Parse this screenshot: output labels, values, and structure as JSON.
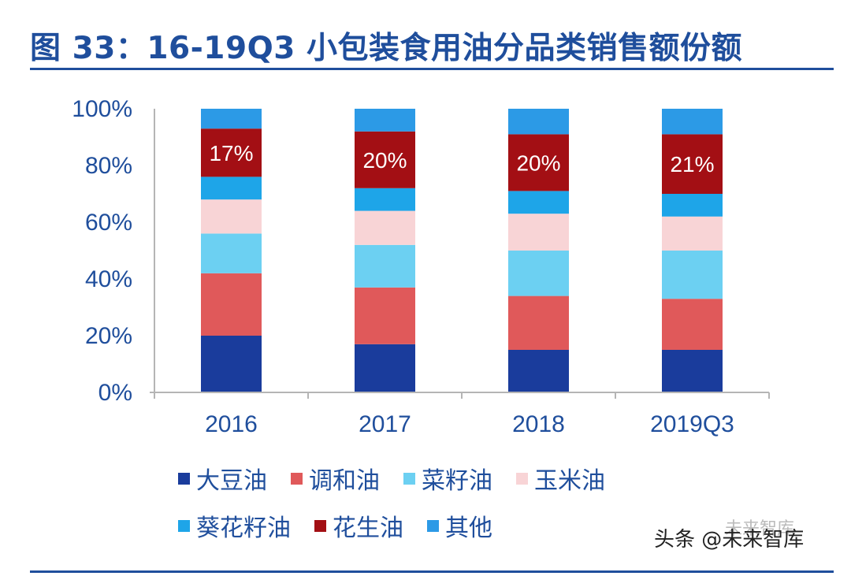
{
  "title": "图 33：16-19Q3 小包装食用油分品类销售额份额",
  "watermark": {
    "text": "头条 @未来智库",
    "logo_text": "未来智库"
  },
  "chart_data": {
    "type": "bar",
    "stacked": true,
    "title": "图 33：16-19Q3 小包装食用油分品类销售额份额",
    "xlabel": "",
    "ylabel": "",
    "ylim": [
      0,
      100
    ],
    "yticks": [
      "0%",
      "20%",
      "40%",
      "60%",
      "80%",
      "100%"
    ],
    "categories": [
      "2016",
      "2017",
      "2018",
      "2019Q3"
    ],
    "legend_position": "bottom",
    "series": [
      {
        "name": "大豆油",
        "color": "#1a3c9c",
        "values": [
          20,
          17,
          15,
          15
        ]
      },
      {
        "name": "调和油",
        "color": "#e0595a",
        "values": [
          22,
          20,
          19,
          18
        ]
      },
      {
        "name": "菜籽油",
        "color": "#6cd0f2",
        "values": [
          14,
          15,
          16,
          17
        ]
      },
      {
        "name": "玉米油",
        "color": "#f8d4d6",
        "values": [
          12,
          12,
          13,
          12
        ]
      },
      {
        "name": "葵花籽油",
        "color": "#1ea5e8",
        "values": [
          8,
          8,
          8,
          8
        ]
      },
      {
        "name": "花生油",
        "color": "#a30f14",
        "values": [
          17,
          20,
          20,
          21
        ]
      },
      {
        "name": "其他",
        "color": "#2c9ae6",
        "values": [
          7,
          8,
          9,
          9
        ]
      }
    ],
    "data_labels": {
      "series": "花生油",
      "labels": [
        "17%",
        "20%",
        "20%",
        "21%"
      ]
    }
  }
}
